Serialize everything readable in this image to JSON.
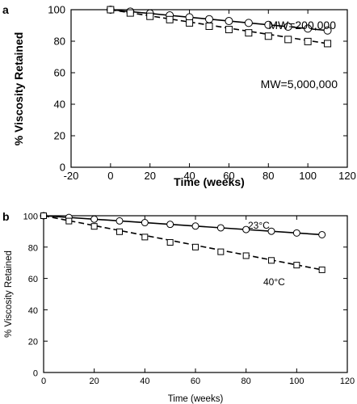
{
  "chart_data": [
    {
      "type": "line",
      "panel_letter": "a",
      "title": "",
      "xlabel": "Time (weeks)",
      "ylabel": "% Viscosity Retained",
      "xlim": [
        -20,
        120
      ],
      "ylim": [
        0,
        100
      ],
      "xticks": [
        -20,
        0,
        20,
        40,
        60,
        80,
        100,
        120
      ],
      "yticks": [
        0,
        20,
        40,
        60,
        80,
        100
      ],
      "xtick_labels": [
        "-20",
        "0",
        "20",
        "40",
        "60",
        "80",
        "100",
        "120"
      ],
      "ytick_labels": [
        "0",
        "20",
        "40",
        "60",
        "80",
        "100"
      ],
      "grid": false,
      "series": [
        {
          "name": "MW=200,000",
          "marker": "circle",
          "line": "solid",
          "x": [
            0,
            10,
            20,
            30,
            40,
            50,
            60,
            70,
            80,
            90,
            100,
            110
          ],
          "y": [
            100,
            98.8,
            97.6,
            96.4,
            95.2,
            94.0,
            92.8,
            91.6,
            90.4,
            89.2,
            88.0,
            86.8
          ]
        },
        {
          "name": "MW=5,000,000",
          "marker": "square",
          "line": "dashed",
          "x": [
            0,
            10,
            20,
            30,
            40,
            50,
            60,
            70,
            80,
            90,
            100,
            110
          ],
          "y": [
            100,
            97.9,
            95.8,
            93.7,
            91.6,
            89.5,
            87.4,
            85.3,
            83.2,
            81.1,
            79.8,
            78.5
          ]
        }
      ]
    },
    {
      "type": "line",
      "panel_letter": "b",
      "title": "",
      "xlabel": "Time (weeks)",
      "ylabel": "% Viscosity Retained",
      "xlim": [
        0,
        120
      ],
      "ylim": [
        0,
        100
      ],
      "xticks": [
        0,
        20,
        40,
        60,
        80,
        100,
        120
      ],
      "yticks": [
        0,
        20,
        40,
        60,
        80,
        100
      ],
      "xtick_labels": [
        "0",
        "20",
        "40",
        "60",
        "80",
        "100",
        "120"
      ],
      "ytick_labels": [
        "0",
        "20",
        "40",
        "60",
        "80",
        "100"
      ],
      "grid": false,
      "series": [
        {
          "name": "23°C",
          "marker": "circle",
          "line": "solid",
          "x": [
            0,
            10,
            20,
            30,
            40,
            50,
            60,
            70,
            80,
            90,
            100,
            110
          ],
          "y": [
            100,
            98.9,
            97.8,
            96.7,
            95.6,
            94.5,
            93.4,
            92.3,
            91.2,
            90.1,
            89.0,
            87.9
          ]
        },
        {
          "name": "40°C",
          "marker": "square",
          "line": "dashed",
          "x": [
            0,
            10,
            20,
            30,
            40,
            50,
            60,
            70,
            80,
            90,
            100,
            110
          ],
          "y": [
            100,
            96.6,
            93.2,
            89.8,
            86.4,
            83.0,
            80.0,
            77.0,
            74.5,
            71.5,
            68.5,
            65.5
          ]
        }
      ]
    }
  ]
}
